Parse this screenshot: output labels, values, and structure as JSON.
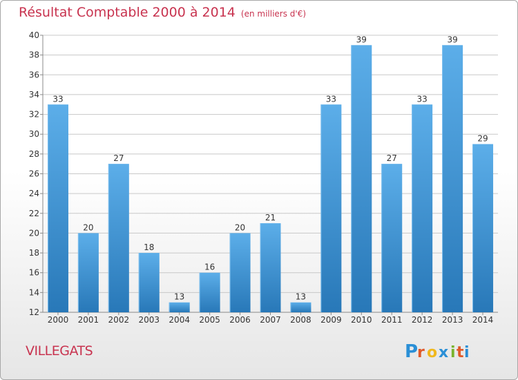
{
  "header": {
    "title": "Résultat Comptable 2000 à 2014",
    "subtitle": "(en milliers d'€)"
  },
  "footer": {
    "commune": "VILLEGATS",
    "brand": "Proxiti",
    "brand_letters": [
      "P",
      "r",
      "o",
      "x",
      "i",
      "t",
      "i"
    ],
    "brand_colors": [
      "#2a8fd6",
      "#e05a2a",
      "#f0b81e",
      "#2a8fd6",
      "#7ab32e",
      "#e05a2a",
      "#2a8fd6"
    ]
  },
  "colors": {
    "bar_top": "#5caee9",
    "bar_bottom": "#2878b8",
    "grid": "#c8c8c8",
    "axis": "#888888",
    "text": "#333333",
    "accent": "#c8334f"
  },
  "chart_data": {
    "type": "bar",
    "title": "Résultat Comptable 2000 à 2014",
    "subtitle": "(en milliers d'€)",
    "categories": [
      "2000",
      "2001",
      "2002",
      "2003",
      "2004",
      "2005",
      "2006",
      "2007",
      "2008",
      "2009",
      "2010",
      "2011",
      "2012",
      "2013",
      "2014"
    ],
    "values": [
      33,
      20,
      27,
      18,
      13,
      16,
      20,
      21,
      13,
      33,
      39,
      27,
      33,
      39,
      29
    ],
    "ylim": [
      12,
      40
    ],
    "yticks": [
      12,
      14,
      16,
      18,
      20,
      22,
      24,
      26,
      28,
      30,
      32,
      34,
      36,
      38,
      40
    ],
    "grid": true,
    "legend": "none",
    "data_labels": true
  }
}
